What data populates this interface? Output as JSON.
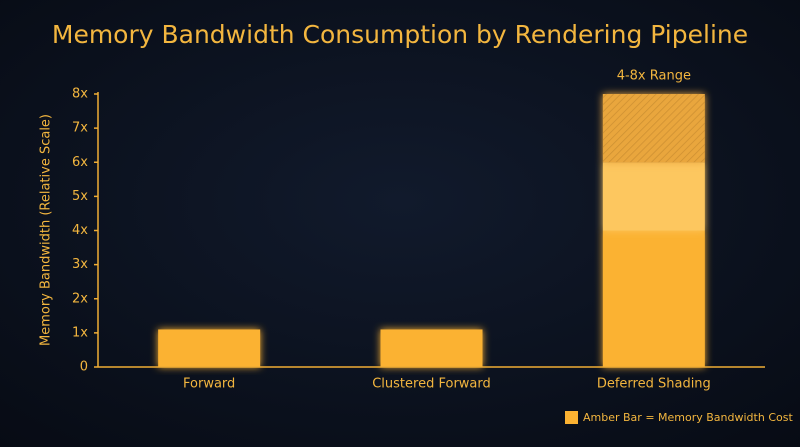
{
  "chart_data": {
    "type": "bar",
    "title": "Memory Bandwidth Consumption by Rendering Pipeline",
    "y_label": "Memory Bandwidth (Relative Scale)",
    "categories": [
      "Forward",
      "Clustered Forward",
      "Deferred Shading"
    ],
    "series": [
      {
        "name": "Amber Bar = Memory Bandwidth Cost",
        "color": "#fbb232",
        "values": [
          1.1,
          1.1,
          4
        ]
      },
      {
        "color": "#fdc75e",
        "values": [
          null,
          null,
          2
        ]
      },
      {
        "color": "#e9a63c",
        "hatch": true,
        "values": [
          null,
          null,
          2
        ]
      }
    ],
    "annotation": "4-8x Range",
    "ylim": [
      0,
      8
    ],
    "yticks": [
      0,
      {
        "value": 1,
        "label": "1x"
      },
      {
        "value": 2,
        "label": "2x"
      },
      {
        "value": 3,
        "label": "3x"
      },
      {
        "value": 4,
        "label": "4x"
      },
      {
        "value": 5,
        "label": "5x"
      },
      {
        "value": 6,
        "label": "6x"
      },
      {
        "value": 7,
        "label": "7x"
      },
      {
        "value": 8,
        "label": "8x"
      }
    ],
    "grid": false,
    "legend": "bottom-right"
  }
}
